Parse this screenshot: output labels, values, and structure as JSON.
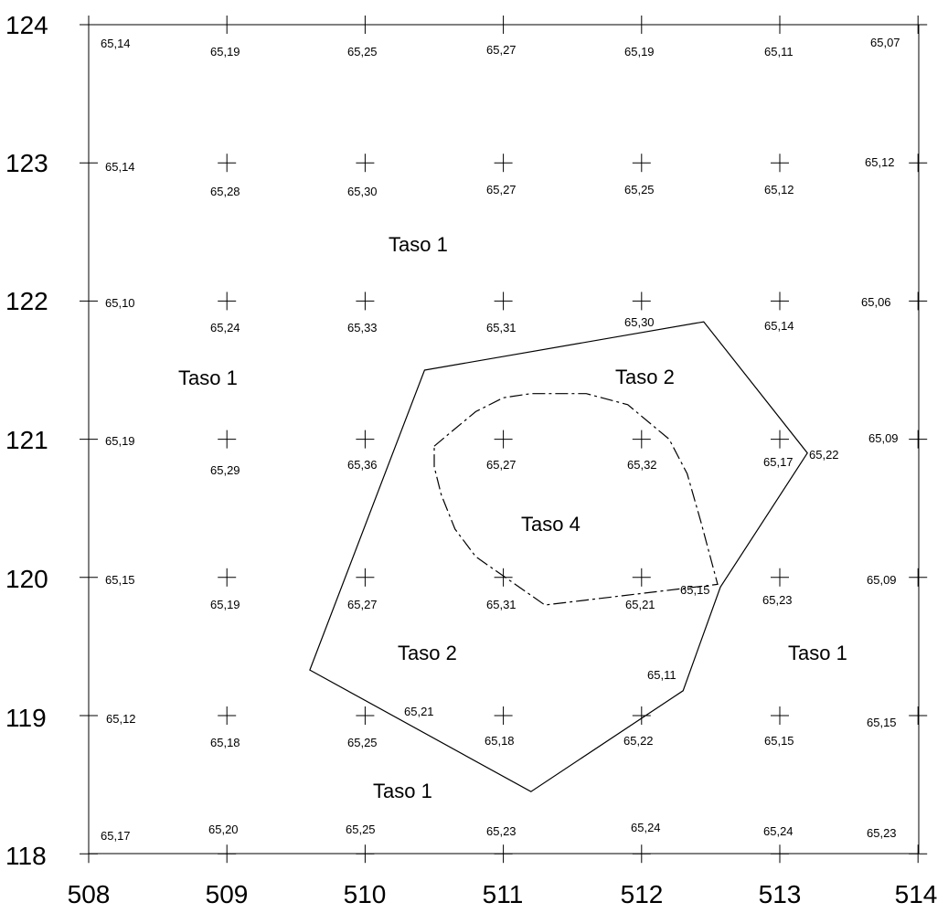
{
  "x_ticks": [
    "508",
    "509",
    "510",
    "511",
    "512",
    "513",
    "514"
  ],
  "y_ticks": [
    "124",
    "123",
    "122",
    "121",
    "120",
    "119",
    "118"
  ],
  "elevations": [
    [
      "65,14",
      "65,19",
      "65,25",
      "65,27",
      "65,19",
      "65,11",
      "65,07"
    ],
    [
      "65,14",
      "65,28",
      "65,30",
      "65,27",
      "65,25",
      "65,12",
      "65,12"
    ],
    [
      "65,10",
      "65,24",
      "65,33",
      "65,31",
      "65,30",
      "65,14",
      "65,06"
    ],
    [
      "65,19",
      "65,29",
      "65,36",
      "65,27",
      "65,32",
      "65,17",
      "65,09"
    ],
    [
      "65,15",
      "65,19",
      "65,27",
      "65,31",
      "65,21",
      "65,23",
      "65,09"
    ],
    [
      "65,12",
      "65,18",
      "65,25",
      "65,18",
      "65,22",
      "65,15",
      "65,15"
    ],
    [
      "65,17",
      "65,20",
      "65,25",
      "65,23",
      "65,24",
      "65,24",
      "65,23"
    ]
  ],
  "extra_elevations": [
    "65,22",
    "65,15",
    "65,11",
    "65,21"
  ],
  "area_labels": [
    "Taso 1",
    "Taso 1",
    "Taso 1",
    "Taso 1",
    "Taso 2",
    "Taso 2",
    "Taso 4"
  ],
  "taso2_boundary": [
    [
      510.43,
      121.5
    ],
    [
      512.45,
      121.85
    ],
    [
      513.2,
      120.9
    ],
    [
      512.57,
      119.93
    ],
    [
      512.3,
      119.18
    ],
    [
      511.2,
      118.45
    ],
    [
      509.6,
      119.33
    ]
  ],
  "taso4_boundary": [
    [
      510.5,
      120.95
    ],
    [
      510.62,
      121.05
    ],
    [
      510.8,
      121.2
    ],
    [
      511.0,
      121.3
    ],
    [
      511.2,
      121.33
    ],
    [
      511.6,
      121.33
    ],
    [
      511.9,
      121.25
    ],
    [
      512.2,
      121.0
    ],
    [
      512.33,
      120.75
    ],
    [
      512.43,
      120.4
    ],
    [
      512.55,
      119.95
    ],
    [
      511.3,
      119.8
    ],
    [
      510.8,
      120.15
    ],
    [
      510.65,
      120.35
    ],
    [
      510.55,
      120.6
    ],
    [
      510.5,
      120.8
    ]
  ]
}
